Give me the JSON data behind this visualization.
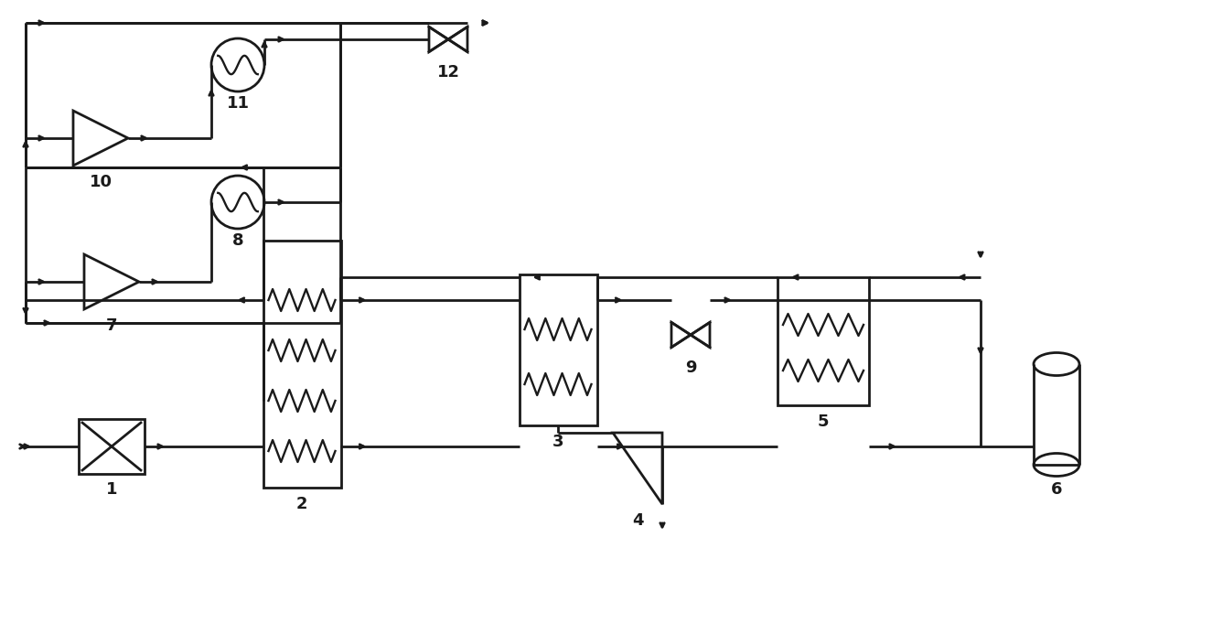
{
  "bg_color": "#ffffff",
  "line_color": "#1a1a1a",
  "line_width": 2.0,
  "fig_width": 13.25,
  "fig_height": 6.93,
  "dpi": 100
}
